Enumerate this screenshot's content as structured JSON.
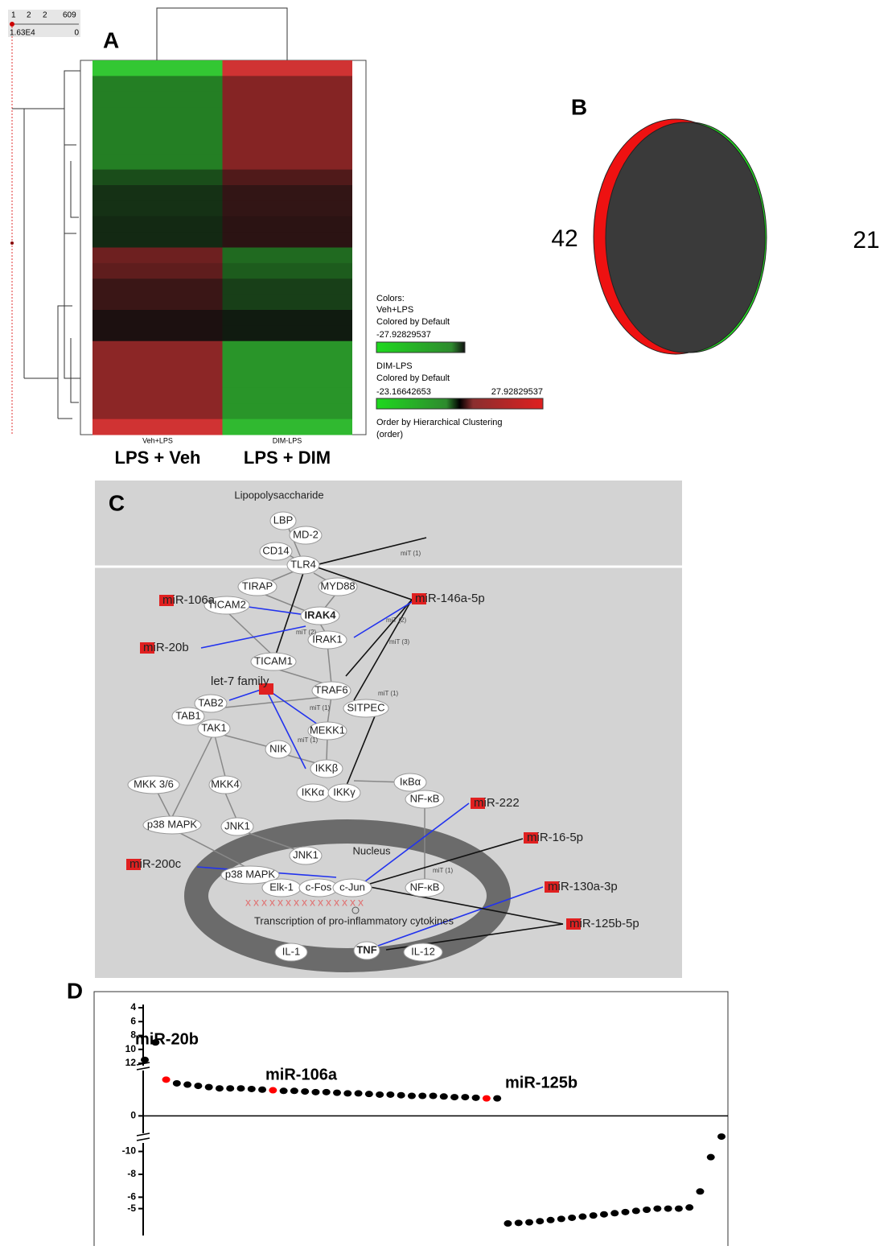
{
  "panels": {
    "a": {
      "label": "A",
      "scale": {
        "ticks": [
          "1",
          "2",
          "2",
          "609"
        ],
        "left": "1.63E4",
        "right": "0"
      },
      "columns": [
        "Veh+LPS",
        "DIM-LPS"
      ],
      "column_titles": [
        "LPS + Veh",
        "LPS + DIM"
      ],
      "rows": [
        [
          -25,
          25
        ],
        [
          -15,
          15
        ],
        [
          -15,
          15
        ],
        [
          -15,
          15
        ],
        [
          -15,
          15
        ],
        [
          -15,
          15
        ],
        [
          -15,
          15
        ],
        [
          -8,
          8
        ],
        [
          -4,
          4
        ],
        [
          -4,
          4
        ],
        [
          -3,
          3
        ],
        [
          -3,
          3
        ],
        [
          12,
          -12
        ],
        [
          10,
          -10
        ],
        [
          5,
          -6
        ],
        [
          5,
          -6
        ],
        [
          1,
          -1
        ],
        [
          1,
          -1
        ],
        [
          16,
          -18
        ],
        [
          16,
          -18
        ],
        [
          16,
          -18
        ],
        [
          16,
          -18
        ],
        [
          16,
          -18
        ],
        [
          25,
          -23
        ]
      ],
      "legend": {
        "title": "Colors:",
        "scales": [
          {
            "name": "Veh+LPS",
            "note": "Colored by Default",
            "min": -27.92829537
          },
          {
            "name": "DIM-LPS",
            "note": "Colored by Default",
            "min": -23.16642653,
            "max": 27.92829537
          }
        ],
        "order": "Order by Hierarchical Clustering",
        "order_note": "(order)"
      }
    },
    "b": {
      "label": "B",
      "left": "42",
      "right": "21"
    },
    "c": {
      "label": "C",
      "nodes": [
        "Lipopolysaccharide",
        "LBP",
        "MD-2",
        "CD14",
        "TLR4",
        "TIRAP",
        "MYD88",
        "IRAK4",
        "IRAK1",
        "TICAM2",
        "TICAM1",
        "TRAF6",
        "SITPEC",
        "TAB2",
        "TAB1",
        "TAK1",
        "MEKK1",
        "NIK",
        "IKKβ",
        "IKKα",
        "IKKγ",
        "IκBα",
        "NF-κB",
        "MKK 3/6",
        "MKK4",
        "p38 MAPK",
        "JNK1",
        "JNK1",
        "Nucleus",
        "p38 MAPK",
        "Elk-1",
        "c-Fos",
        "c-Jun",
        "NF-κB",
        "Transcription of pro-inflammatory cytokines",
        "TNF",
        "IL-1",
        "IL-12"
      ],
      "mirnas": [
        "miR-106a",
        "miR-20b",
        "let-7 family",
        "miR-146a-5p",
        "miR-222",
        "miR-16-5p",
        "miR-200c",
        "miR-130a-3p",
        "miR-125b-5p"
      ],
      "edge_labels": [
        "miT (1)",
        "miT (2)",
        "miT (2)",
        "miT (3)",
        "miT (1)",
        "miT (1)",
        "miT (1)",
        "miT (1)"
      ]
    },
    "d": {
      "label": "D",
      "y_segments": [
        {
          "ylim": [
            4,
            12
          ],
          "yticks": [
            12,
            10,
            8,
            6,
            4
          ]
        },
        {
          "ylim": [
            -1.2,
            3.5
          ],
          "yticks": [
            0
          ]
        },
        {
          "ylim": [
            -11.8,
            -3
          ],
          "yticks": [
            -5,
            -6,
            -8,
            -10
          ]
        }
      ],
      "values": [
        11.5,
        9,
        2.9,
        2.6,
        2.5,
        2.4,
        2.3,
        2.2,
        2.2,
        2.2,
        2.15,
        2.1,
        2.05,
        2.0,
        2.0,
        1.95,
        1.9,
        1.9,
        1.85,
        1.8,
        1.8,
        1.75,
        1.7,
        1.7,
        1.65,
        1.6,
        1.6,
        1.6,
        1.55,
        1.5,
        1.5,
        1.45,
        1.4,
        1.4,
        -3.7,
        -3.75,
        -3.8,
        -3.9,
        -4.0,
        -4.1,
        -4.2,
        -4.3,
        -4.4,
        -4.5,
        -4.6,
        -4.7,
        -4.8,
        -4.9,
        -5.0,
        -5.0,
        -5.0,
        -5.1,
        -6.5,
        -9.5,
        -11.3
      ],
      "colors": [
        "black",
        "black",
        "red",
        "black",
        "black",
        "black",
        "black",
        "black",
        "black",
        "black",
        "black",
        "black",
        "red",
        "black",
        "black",
        "black",
        "black",
        "black",
        "black",
        "black",
        "black",
        "black",
        "black",
        "black",
        "black",
        "black",
        "black",
        "black",
        "black",
        "black",
        "black",
        "black",
        "red",
        "black",
        "black",
        "black",
        "black",
        "black",
        "black",
        "black",
        "black",
        "black",
        "black",
        "black",
        "black",
        "black",
        "black",
        "black",
        "black",
        "black",
        "black",
        "black",
        "black",
        "black",
        "black"
      ],
      "annotations": [
        "miR-20b",
        "miR-106a",
        "miR-125b"
      ]
    }
  }
}
